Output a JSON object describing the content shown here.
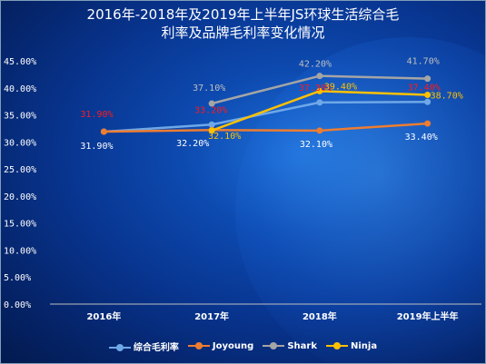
{
  "title_line1": "2016年-2018年及2019年上半年JS环球生活综合毛",
  "title_line2": "利率及品牌毛利率变化情况",
  "chart_data": {
    "type": "line",
    "title": "2016年-2018年及2019年上半年JS环球生活综合毛利率及品牌毛利率变化情况",
    "categories": [
      "2016年",
      "2017年",
      "2018年",
      "2019年上半年"
    ],
    "ylim": [
      0,
      45
    ],
    "yticks": [
      "0.00%",
      "5.00%",
      "10.00%",
      "15.00%",
      "20.00%",
      "25.00%",
      "30.00%",
      "35.00%",
      "40.00%",
      "45.00%"
    ],
    "grid": false,
    "legend_position": "bottom",
    "series": [
      {
        "name": "综合毛利率",
        "color": "#6fa8e8",
        "values": [
          31.9,
          33.2,
          37.3,
          37.4
        ],
        "labels": [
          "31.90%",
          "33.20%",
          "37.30%",
          "37.40%"
        ],
        "label_color": "#ff1a1a"
      },
      {
        "name": "Joyoung",
        "color": "#ed7d31",
        "values": [
          31.9,
          32.2,
          32.1,
          33.4
        ],
        "labels": [
          "31.90%",
          "32.20%",
          "32.10%",
          "33.40%"
        ],
        "label_color": "#ffffff"
      },
      {
        "name": "Shark",
        "color": "#a5a5a5",
        "values": [
          null,
          37.1,
          42.2,
          41.7
        ],
        "labels": [
          null,
          "37.10%",
          "42.20%",
          "41.70%"
        ],
        "label_color": "#bfbfbf"
      },
      {
        "name": "Ninja",
        "color": "#ffc000",
        "values": [
          null,
          32.1,
          39.4,
          38.7
        ],
        "labels": [
          null,
          "32.10%",
          "39.40%",
          "38.70%"
        ],
        "label_color": "#ffc000"
      }
    ]
  }
}
